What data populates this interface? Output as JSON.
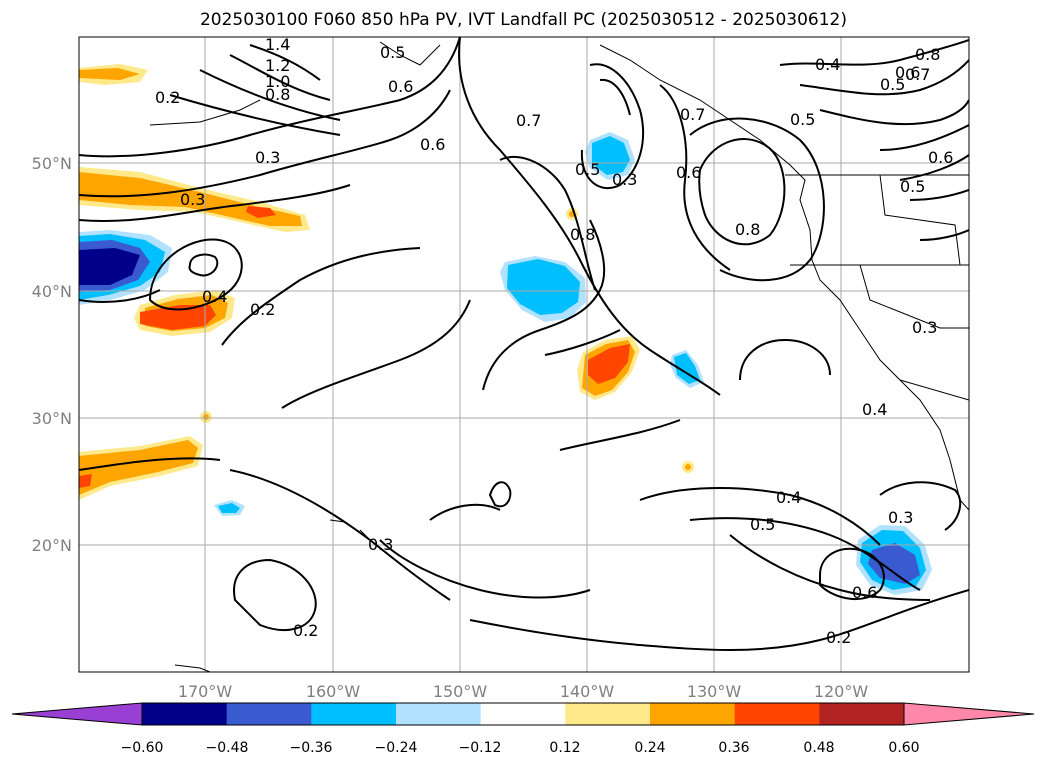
{
  "title": "2025030100 F060 850 hPa PV, IVT Landfall PC (2025030512 - 2025030612)",
  "axes": {
    "lon_labels": [
      "170°W",
      "160°W",
      "150°W",
      "140°W",
      "130°W",
      "120°W"
    ],
    "lat_labels": [
      "50°N",
      "40°N",
      "30°N",
      "20°N"
    ]
  },
  "contour_labels": [
    "1.4",
    "1.2",
    "1.0",
    "0.8",
    "0.5",
    "0.6",
    "0.2",
    "0.3",
    "0.3",
    "0.4",
    "0.2",
    "0.6",
    "0.7",
    "0.5",
    "0.3",
    "0.8",
    "0.6",
    "0.7",
    "0.8",
    "0.5",
    "0.4",
    "0.7",
    "0.5",
    "0.6",
    "0.8",
    "0.6",
    "0.5",
    "0.3",
    "0.4",
    "0.4",
    "0.5",
    "0.3",
    "0.6",
    "0.2",
    "0.3",
    "0.2"
  ],
  "colorbar": {
    "colors": [
      "#9a3fd4",
      "#00008b",
      "#3a5bd0",
      "#00bfff",
      "#b0e2ff",
      "#ffffff",
      "#ffe98b",
      "#ffa500",
      "#ff4500",
      "#b22222",
      "#ff88aa"
    ],
    "tick_labels": [
      "−0.60",
      "−0.48",
      "−0.36",
      "−0.24",
      "−0.12",
      "0.12",
      "0.24",
      "0.36",
      "0.48",
      "0.60"
    ]
  }
}
